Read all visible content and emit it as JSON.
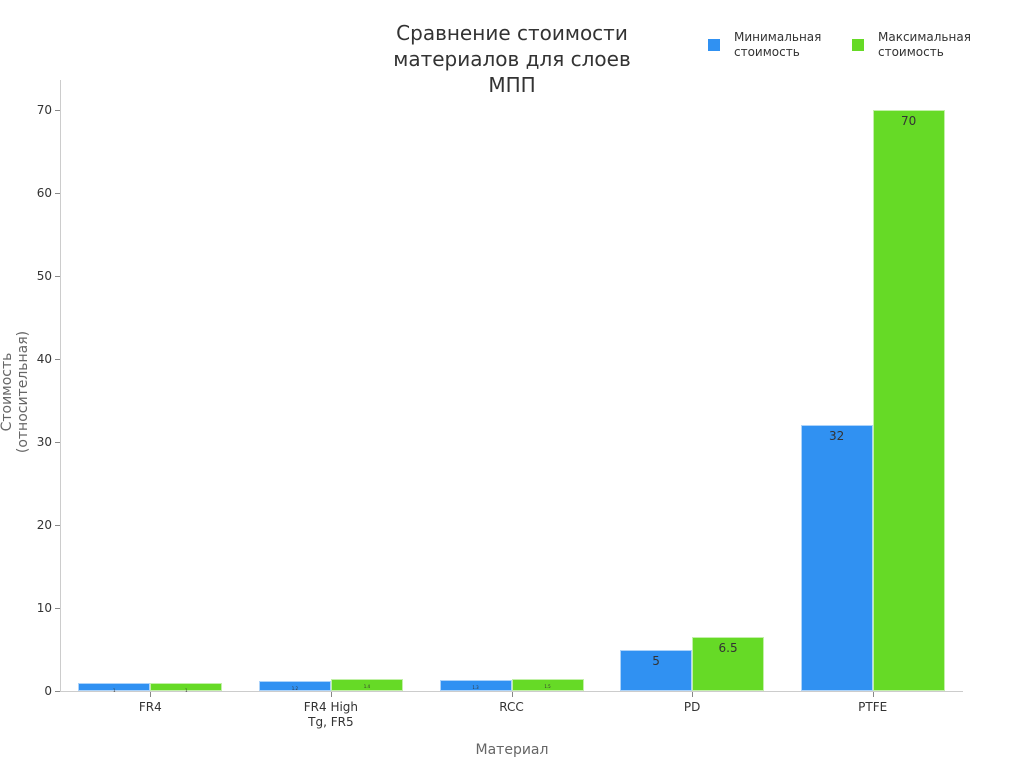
{
  "chart_data": {
    "type": "bar",
    "title": "Сравнение стоимости материалов для слоев МПП",
    "title_lines": [
      "Сравнение стоимости",
      "материалов для слоев",
      "МПП"
    ],
    "xlabel": "Материал",
    "ylabel": "Стоимость (относительная)",
    "categories": [
      "FR4",
      "FR4 High Tg, FR5",
      "RCC",
      "PD",
      "PTFE"
    ],
    "category_lines": [
      [
        "FR4"
      ],
      [
        "FR4 High",
        "Tg, FR5"
      ],
      [
        "RCC"
      ],
      [
        "PD"
      ],
      [
        "PTFE"
      ]
    ],
    "series": [
      {
        "name": "Минимальная стоимость",
        "color": "#3091F2",
        "values": [
          1,
          1.2,
          1.3,
          5,
          32
        ]
      },
      {
        "name": "Максимальная стоимость",
        "color": "#66DA26",
        "values": [
          1,
          1.4,
          1.5,
          6.5,
          70
        ]
      }
    ],
    "ylim": [
      0,
      73
    ],
    "yticks": [
      0,
      10,
      20,
      30,
      40,
      50,
      60,
      70
    ],
    "grid": false,
    "legend_position": "top-right",
    "data_labels": true
  },
  "legend": {
    "items": [
      {
        "label_line1": "Минимальная",
        "label_line2": "стоимость",
        "color": "#3091F2"
      },
      {
        "label_line1": "Максимальная",
        "label_line2": "стоимость",
        "color": "#66DA26"
      }
    ]
  }
}
